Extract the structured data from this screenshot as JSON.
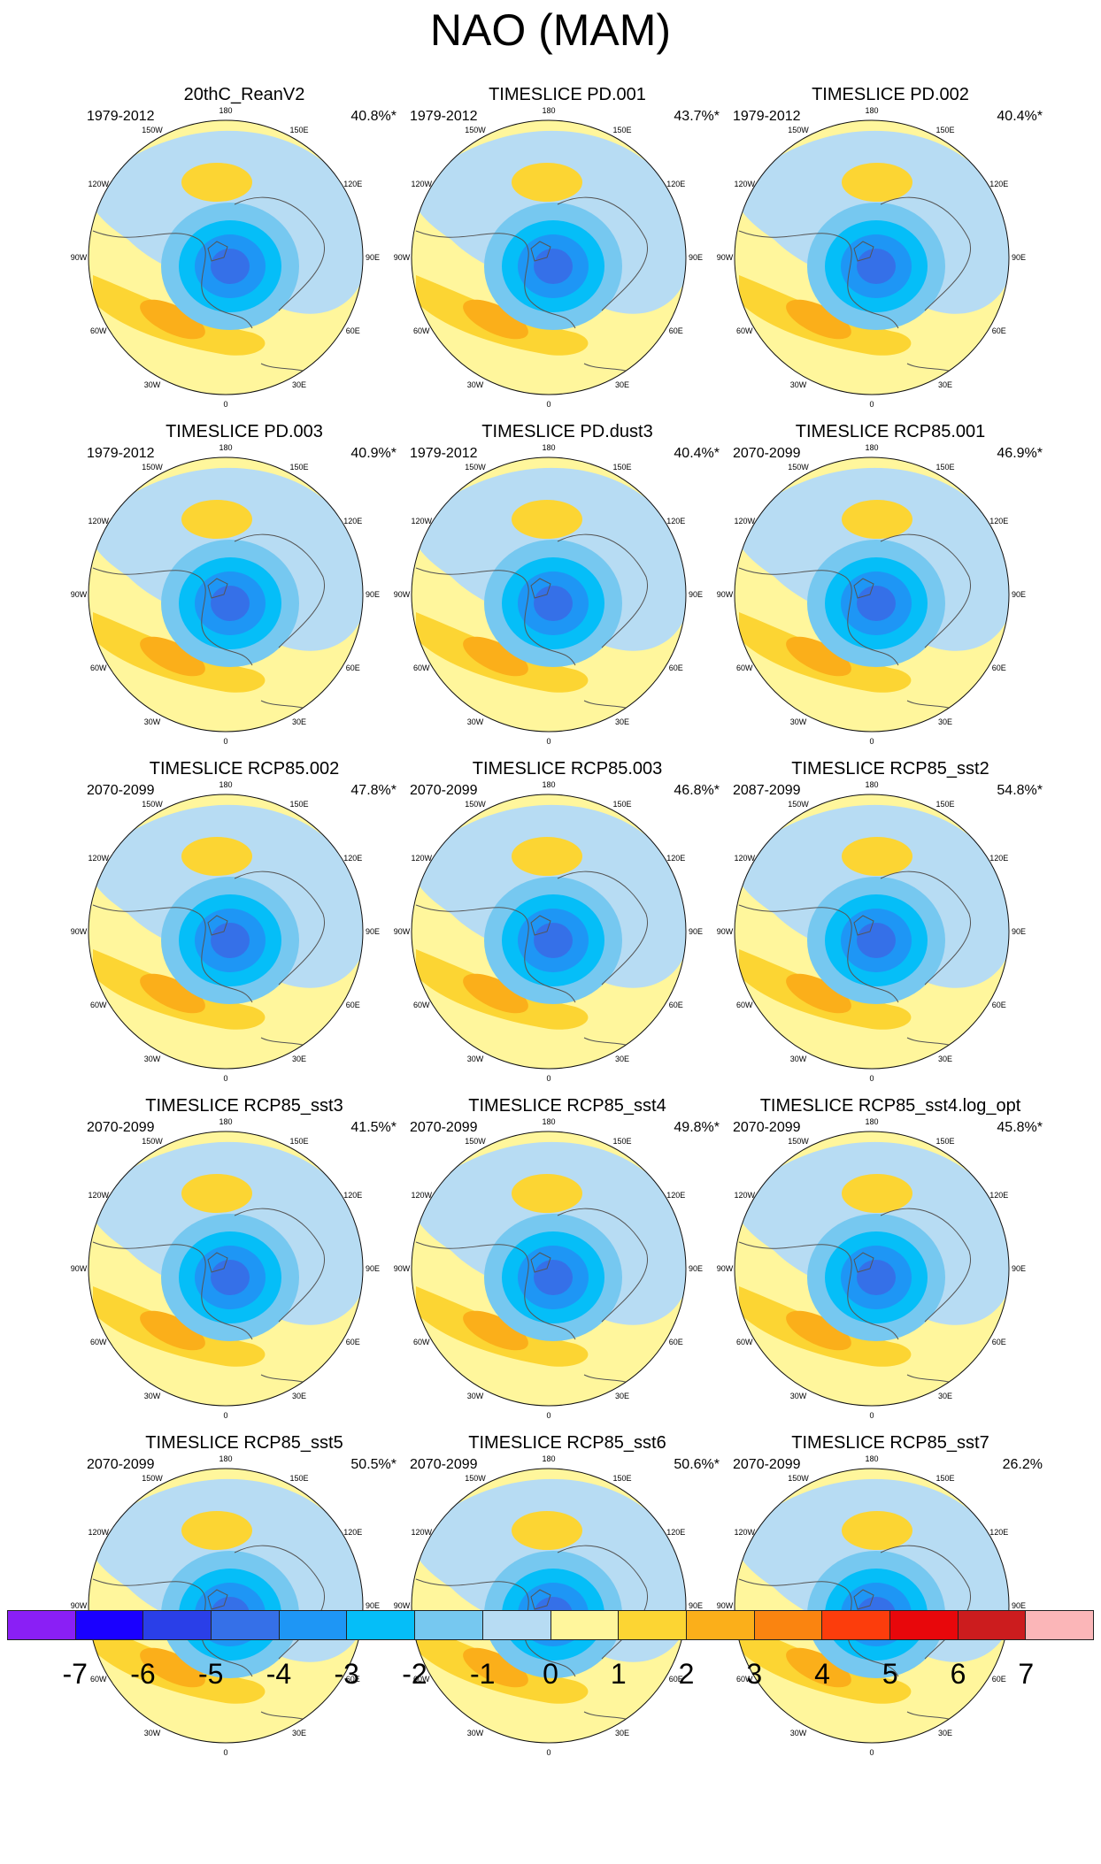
{
  "figure": {
    "title": "NAO (MAM)"
  },
  "lon_labels": [
    "180",
    "150E",
    "120E",
    "90E",
    "60E",
    "30E",
    "0",
    "30W",
    "60W",
    "90W",
    "120W",
    "150W"
  ],
  "colors": {
    "neg7": "#8a1ff5",
    "neg6": "#1a00ff",
    "neg5": "#2a3fe8",
    "neg4": "#3570e8",
    "neg3": "#1e96f5",
    "neg2": "#05bef8",
    "neg1": "#76c8f0",
    "zero_neg": "#b7dcf3",
    "zero_pos": "#fff69c",
    "pos1": "#fcd533",
    "pos2": "#fbaf1a",
    "pos3": "#fa8410",
    "pos4": "#fc3d0c",
    "pos5": "#e8070b",
    "pos6": "#cc1c1e",
    "pos7": "#fbb6b8",
    "coast": "#555555",
    "map_border": "#111111"
  },
  "panels": [
    {
      "title": "20thC_ReanV2",
      "period": "1979-2012",
      "variance": "40.8%*"
    },
    {
      "title": "TIMESLICE PD.001",
      "period": "1979-2012",
      "variance": "43.7%*"
    },
    {
      "title": "TIMESLICE PD.002",
      "period": "1979-2012",
      "variance": "40.4%*"
    },
    {
      "title": "TIMESLICE PD.003",
      "period": "1979-2012",
      "variance": "40.9%*"
    },
    {
      "title": "TIMESLICE PD.dust3",
      "period": "1979-2012",
      "variance": "40.4%*"
    },
    {
      "title": "TIMESLICE RCP85.001",
      "period": "2070-2099",
      "variance": "46.9%*"
    },
    {
      "title": "TIMESLICE RCP85.002",
      "period": "2070-2099",
      "variance": "47.8%*"
    },
    {
      "title": "TIMESLICE RCP85.003",
      "period": "2070-2099",
      "variance": "46.8%*"
    },
    {
      "title": "TIMESLICE RCP85_sst2",
      "period": "2087-2099",
      "variance": "54.8%*"
    },
    {
      "title": "TIMESLICE RCP85_sst3",
      "period": "2070-2099",
      "variance": "41.5%*"
    },
    {
      "title": "TIMESLICE RCP85_sst4",
      "period": "2070-2099",
      "variance": "49.8%*"
    },
    {
      "title": "TIMESLICE RCP85_sst4.log_opt",
      "period": "2070-2099",
      "variance": "45.8%*"
    },
    {
      "title": "TIMESLICE RCP85_sst5",
      "period": "2070-2099",
      "variance": "50.5%*"
    },
    {
      "title": "TIMESLICE RCP85_sst6",
      "period": "2070-2099",
      "variance": "50.6%*"
    },
    {
      "title": "TIMESLICE RCP85_sst7",
      "period": "2070-2099",
      "variance": "26.2%"
    }
  ],
  "colorbar": {
    "labels": [
      "-7",
      "-6",
      "-5",
      "-4",
      "-3",
      "-2",
      "-1",
      "0",
      "1",
      "2",
      "3",
      "4",
      "5",
      "6",
      "7"
    ],
    "box_colors": [
      "#8a1ff5",
      "#1a00ff",
      "#2a3fe8",
      "#3570e8",
      "#1e96f5",
      "#05bef8",
      "#76c8f0",
      "#b7dcf3",
      "#fff69c",
      "#fcd533",
      "#fbaf1a",
      "#fa8410",
      "#fc3d0c",
      "#e8070b",
      "#cc1c1e",
      "#fbb6b8"
    ]
  }
}
